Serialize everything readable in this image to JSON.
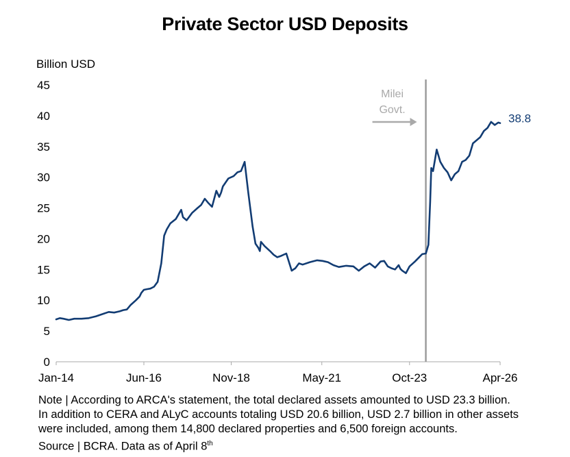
{
  "chart_data": {
    "type": "line",
    "title": "Private Sector USD Deposits",
    "ylabel": "Billion USD",
    "xlabel": "",
    "ylim": [
      0,
      45
    ],
    "yticks": [
      0,
      5,
      10,
      15,
      20,
      25,
      30,
      35,
      40,
      45
    ],
    "xlim": [
      2014.0,
      2026.25
    ],
    "xticks": [
      {
        "label": "Jan-14",
        "value": 2014.0
      },
      {
        "label": "Jun-16",
        "value": 2016.42
      },
      {
        "label": "Nov-18",
        "value": 2018.83
      },
      {
        "label": "May-21",
        "value": 2021.33
      },
      {
        "label": "Oct-23",
        "value": 2023.75
      },
      {
        "label": "Apr-26",
        "value": 2026.25
      }
    ],
    "series": [
      {
        "name": "Private Sector USD Deposits",
        "color": "#123c73",
        "x": [
          2014.0,
          2014.1,
          2014.2,
          2014.35,
          2014.5,
          2014.7,
          2014.9,
          2015.1,
          2015.3,
          2015.45,
          2015.6,
          2015.75,
          2015.85,
          2015.95,
          2016.05,
          2016.2,
          2016.3,
          2016.35,
          2016.42,
          2016.5,
          2016.6,
          2016.7,
          2016.8,
          2016.9,
          2016.98,
          2017.05,
          2017.15,
          2017.3,
          2017.45,
          2017.5,
          2017.6,
          2017.75,
          2017.9,
          2018.0,
          2018.1,
          2018.2,
          2018.3,
          2018.42,
          2018.5,
          2018.55,
          2018.6,
          2018.75,
          2018.9,
          2019.0,
          2019.1,
          2019.2,
          2019.3,
          2019.42,
          2019.5,
          2019.58,
          2019.62,
          2019.65,
          2019.75,
          2019.9,
          2020.0,
          2020.1,
          2020.2,
          2020.35,
          2020.5,
          2020.6,
          2020.7,
          2020.8,
          2021.0,
          2021.2,
          2021.35,
          2021.5,
          2021.65,
          2021.8,
          2022.0,
          2022.2,
          2022.35,
          2022.5,
          2022.65,
          2022.8,
          2022.95,
          2023.05,
          2023.15,
          2023.25,
          2023.35,
          2023.45,
          2023.5,
          2023.55,
          2023.65,
          2023.75,
          2023.9,
          2024.0,
          2024.1,
          2024.2,
          2024.27,
          2024.32,
          2024.35,
          2024.4,
          2024.5,
          2024.6,
          2024.7,
          2024.8,
          2024.9,
          2025.0,
          2025.1,
          2025.2,
          2025.3,
          2025.4,
          2025.5,
          2025.6,
          2025.7,
          2025.8,
          2025.9,
          2026.0,
          2026.1,
          2026.2,
          2026.25
        ],
        "values": [
          6.9,
          7.1,
          7.0,
          6.8,
          7.0,
          7.0,
          7.1,
          7.4,
          7.8,
          8.1,
          8.0,
          8.2,
          8.4,
          8.5,
          9.2,
          10.0,
          10.6,
          11.2,
          11.7,
          11.8,
          11.9,
          12.2,
          13.0,
          16.0,
          20.5,
          21.5,
          22.5,
          23.2,
          24.7,
          23.5,
          23.0,
          24.2,
          25.0,
          25.5,
          26.5,
          25.8,
          25.2,
          27.8,
          26.8,
          27.5,
          28.5,
          29.8,
          30.2,
          30.8,
          31.0,
          32.5,
          27.5,
          22.0,
          19.2,
          18.5,
          18.0,
          19.5,
          18.8,
          18.0,
          17.4,
          17.0,
          17.2,
          17.6,
          14.8,
          15.2,
          16.0,
          15.8,
          16.2,
          16.5,
          16.4,
          16.2,
          15.7,
          15.4,
          15.6,
          15.5,
          14.8,
          15.5,
          16.0,
          15.3,
          16.3,
          16.4,
          15.5,
          15.2,
          15.0,
          15.7,
          15.1,
          14.8,
          14.4,
          15.5,
          16.3,
          16.9,
          17.5,
          17.6,
          19.0,
          26.0,
          31.5,
          31.0,
          34.5,
          32.5,
          31.5,
          30.8,
          29.5,
          30.5,
          31.0,
          32.5,
          32.8,
          33.5,
          35.5,
          36.0,
          36.5,
          37.5,
          38.0,
          39.0,
          38.5,
          38.9,
          38.8
        ]
      }
    ],
    "last_value_label": "38.8",
    "annotation": {
      "line1": "Milei",
      "line2": "Govt.",
      "x": 2024.2
    }
  },
  "note": {
    "line1": "Note |  According to ARCA's statement, the total declared assets amounted to USD 23.3 billion.",
    "line2": "In addition to CERA and ALyC accounts totaling USD 20.6 billion, USD 2.7 billion in other assets",
    "line3": "were included, among them 14,800 declared properties and 6,500 foreign accounts.",
    "source": "Source | BCRA. Data as of April 8",
    "source_sup": "th"
  },
  "colors": {
    "series": "#123c73",
    "annotation_line": "#9c9c9c",
    "annotation_text": "#a9a9a9",
    "axis": "#aaaaaa"
  }
}
